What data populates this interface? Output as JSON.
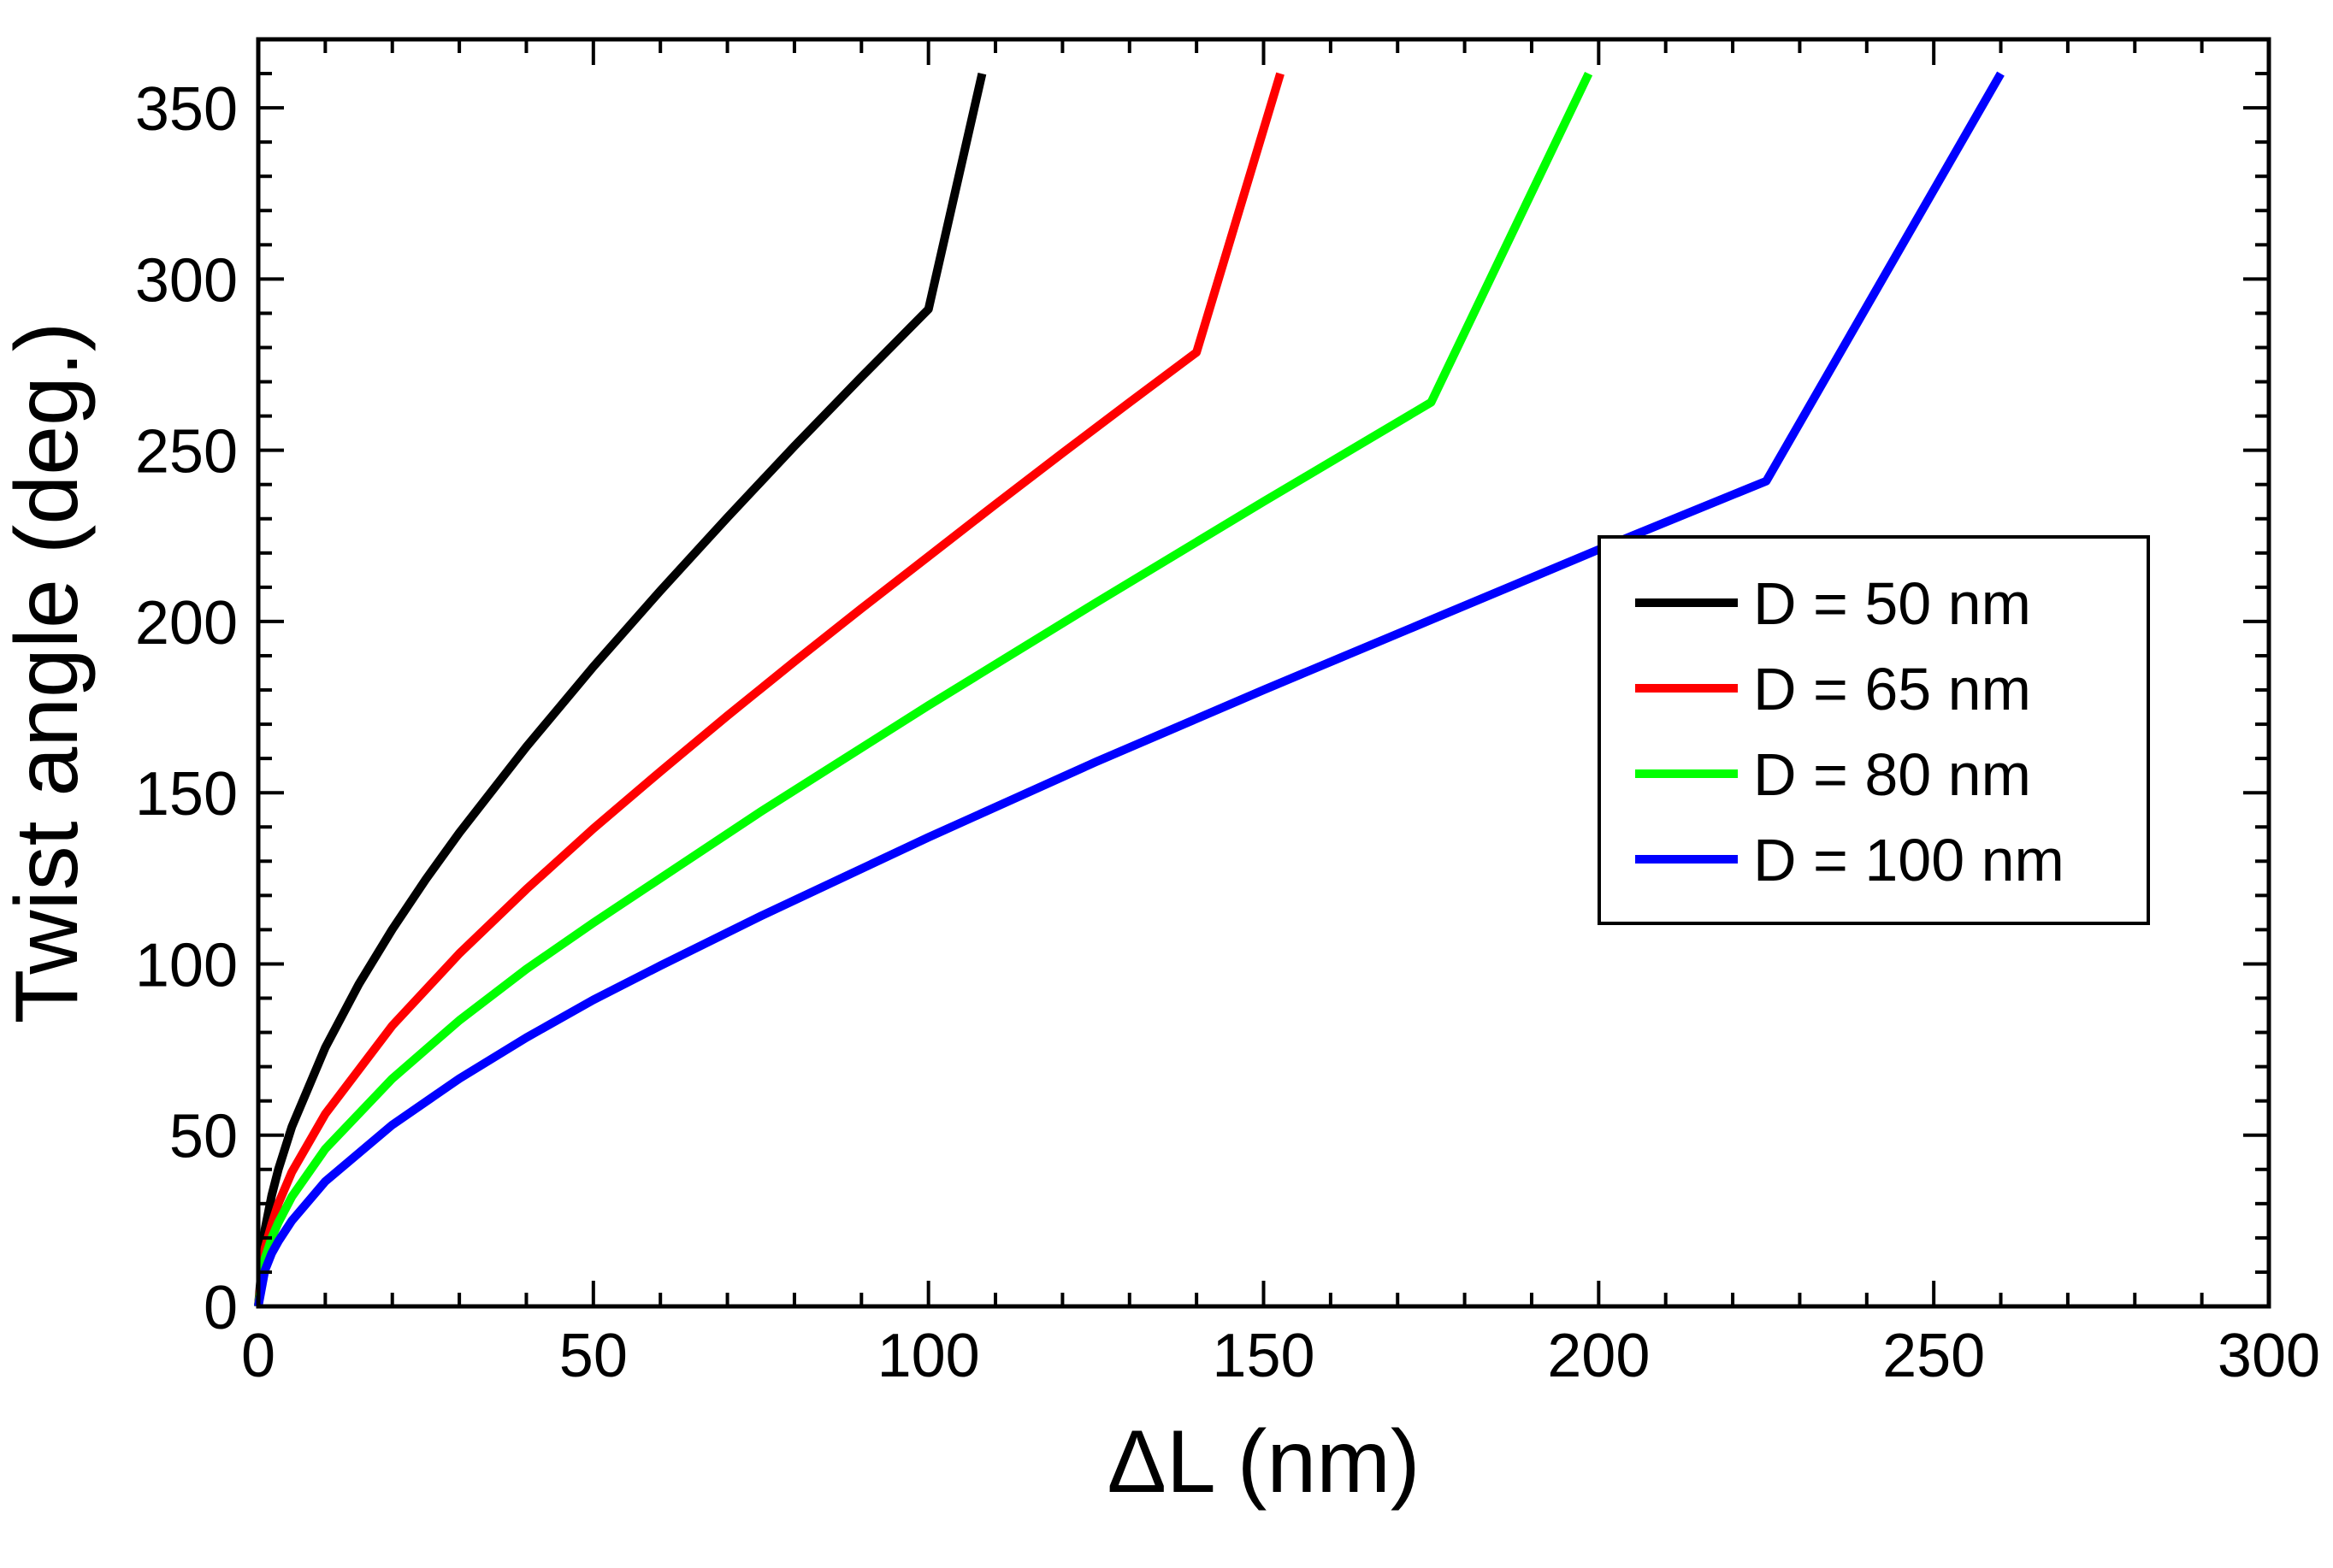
{
  "chart_data": {
    "type": "line",
    "xlabel": "ΔL (nm)",
    "ylabel": "Twist angle (deg.)",
    "xlim": [
      0,
      300
    ],
    "ylim": [
      0,
      370
    ],
    "x_major_ticks": [
      0,
      50,
      100,
      150,
      200,
      250,
      300
    ],
    "x_minor_step": 10,
    "y_major_ticks": [
      0,
      50,
      100,
      150,
      200,
      250,
      300,
      350
    ],
    "y_minor_step": 10,
    "grid": false,
    "legend_position": "center-right",
    "series": [
      {
        "name": "D = 50 nm",
        "color": "#000000",
        "x": [
          0,
          1,
          2,
          3,
          5,
          10,
          15,
          20,
          25,
          30,
          40,
          50,
          60,
          70,
          80,
          90,
          100,
          108
        ],
        "y": [
          0,
          22.5,
          32.4,
          40,
          52.4,
          75.6,
          94.1,
          110.1,
          124.7,
          138.3,
          163.4,
          186.8,
          209.0,
          230.4,
          251.2,
          271.4,
          291.2,
          360
        ]
      },
      {
        "name": "D = 65 nm",
        "color": "#ff0000",
        "x": [
          0,
          1,
          2,
          3,
          5,
          10,
          20,
          30,
          40,
          50,
          60,
          70,
          80,
          90,
          100,
          110,
          120,
          130,
          140,
          152.5
        ],
        "y": [
          0,
          17,
          24,
          30,
          39.2,
          56.2,
          82,
          103,
          121.8,
          139.5,
          156.2,
          172.5,
          188.3,
          203.8,
          219,
          234.2,
          249.2,
          264,
          278.6,
          360
        ]
      },
      {
        "name": "D = 80 nm",
        "color": "#00ff00",
        "x": [
          0,
          1,
          2,
          3,
          5,
          10,
          20,
          30,
          40,
          50,
          60,
          75,
          100,
          125,
          150,
          175,
          198.5
        ],
        "y": [
          0,
          14,
          20,
          24.5,
          32,
          46,
          66.5,
          83.5,
          98.5,
          112,
          125,
          144.5,
          175.5,
          205.5,
          235,
          264,
          360
        ]
      },
      {
        "name": "D = 100 nm",
        "color": "#0000ff",
        "x": [
          0,
          1,
          2,
          3,
          5,
          10,
          20,
          30,
          40,
          50,
          60,
          75,
          100,
          125,
          150,
          175,
          200,
          225,
          260
        ],
        "y": [
          0,
          10.5,
          15.5,
          19,
          25,
          36.5,
          53,
          66.5,
          78.5,
          89.5,
          99.5,
          114,
          137,
          159,
          180,
          200.5,
          221,
          241,
          360
        ]
      }
    ]
  }
}
